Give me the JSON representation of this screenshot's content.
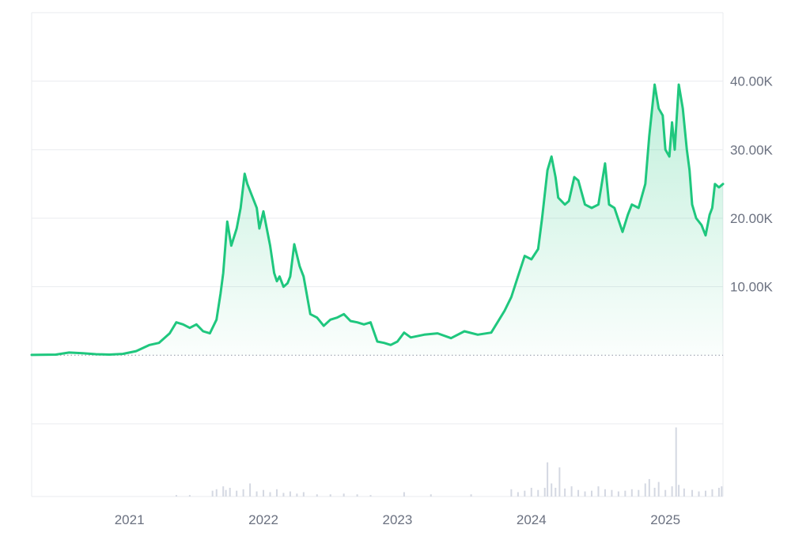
{
  "chart_data": {
    "type": "area",
    "y_ticks": [
      {
        "value": 10000,
        "label": "10.00K"
      },
      {
        "value": 20000,
        "label": "20.00K"
      },
      {
        "value": 30000,
        "label": "30.00K"
      },
      {
        "value": 40000,
        "label": "40.00K"
      }
    ],
    "x_ticks": [
      {
        "value": 2021,
        "label": "2021"
      },
      {
        "value": 2022,
        "label": "2022"
      },
      {
        "value": 2023,
        "label": "2023"
      },
      {
        "value": 2024,
        "label": "2024"
      },
      {
        "value": 2025,
        "label": "2025"
      }
    ],
    "xlim": [
      2020.27,
      2025.43
    ],
    "ylim": [
      -10000,
      50000
    ],
    "baseline_value": 0,
    "grid": true,
    "legend": "none",
    "colors": {
      "line": "#1fc77e",
      "area_top": "#1fc77e",
      "grid": "#e9ebef",
      "volume": "#d4d8e2",
      "baseline": "#9aa0ad"
    },
    "series": [
      {
        "points": [
          [
            2020.27,
            50
          ],
          [
            2020.45,
            100
          ],
          [
            2020.55,
            400
          ],
          [
            2020.65,
            300
          ],
          [
            2020.75,
            150
          ],
          [
            2020.85,
            100
          ],
          [
            2020.95,
            200
          ],
          [
            2021.05,
            600
          ],
          [
            2021.15,
            1500
          ],
          [
            2021.22,
            1800
          ],
          [
            2021.3,
            3200
          ],
          [
            2021.35,
            4800
          ],
          [
            2021.4,
            4500
          ],
          [
            2021.45,
            4000
          ],
          [
            2021.5,
            4500
          ],
          [
            2021.55,
            3500
          ],
          [
            2021.6,
            3200
          ],
          [
            2021.65,
            5200
          ],
          [
            2021.68,
            9000
          ],
          [
            2021.7,
            12000
          ],
          [
            2021.73,
            19500
          ],
          [
            2021.76,
            16000
          ],
          [
            2021.8,
            18500
          ],
          [
            2021.83,
            21500
          ],
          [
            2021.86,
            26500
          ],
          [
            2021.88,
            25000
          ],
          [
            2021.92,
            23000
          ],
          [
            2021.95,
            21500
          ],
          [
            2021.97,
            18500
          ],
          [
            2022.0,
            21000
          ],
          [
            2022.02,
            19000
          ],
          [
            2022.05,
            16000
          ],
          [
            2022.08,
            12000
          ],
          [
            2022.1,
            10800
          ],
          [
            2022.12,
            11500
          ],
          [
            2022.15,
            10000
          ],
          [
            2022.18,
            10500
          ],
          [
            2022.2,
            11500
          ],
          [
            2022.23,
            16200
          ],
          [
            2022.27,
            13000
          ],
          [
            2022.3,
            11500
          ],
          [
            2022.35,
            6000
          ],
          [
            2022.4,
            5500
          ],
          [
            2022.45,
            4300
          ],
          [
            2022.5,
            5200
          ],
          [
            2022.55,
            5500
          ],
          [
            2022.6,
            6000
          ],
          [
            2022.65,
            5000
          ],
          [
            2022.7,
            4800
          ],
          [
            2022.75,
            4500
          ],
          [
            2022.8,
            4800
          ],
          [
            2022.85,
            2000
          ],
          [
            2022.9,
            1800
          ],
          [
            2022.95,
            1500
          ],
          [
            2023.0,
            2000
          ],
          [
            2023.05,
            3300
          ],
          [
            2023.1,
            2600
          ],
          [
            2023.2,
            3000
          ],
          [
            2023.3,
            3200
          ],
          [
            2023.4,
            2500
          ],
          [
            2023.5,
            3500
          ],
          [
            2023.6,
            3000
          ],
          [
            2023.7,
            3300
          ],
          [
            2023.8,
            6500
          ],
          [
            2023.85,
            8500
          ],
          [
            2023.9,
            11500
          ],
          [
            2023.95,
            14500
          ],
          [
            2024.0,
            14000
          ],
          [
            2024.05,
            15500
          ],
          [
            2024.08,
            20000
          ],
          [
            2024.12,
            27000
          ],
          [
            2024.15,
            29000
          ],
          [
            2024.18,
            26000
          ],
          [
            2024.2,
            23000
          ],
          [
            2024.25,
            22000
          ],
          [
            2024.28,
            22500
          ],
          [
            2024.32,
            26000
          ],
          [
            2024.35,
            25500
          ],
          [
            2024.4,
            22000
          ],
          [
            2024.45,
            21500
          ],
          [
            2024.5,
            22000
          ],
          [
            2024.55,
            28000
          ],
          [
            2024.58,
            22000
          ],
          [
            2024.62,
            21500
          ],
          [
            2024.68,
            18000
          ],
          [
            2024.72,
            20500
          ],
          [
            2024.75,
            22000
          ],
          [
            2024.8,
            21500
          ],
          [
            2024.85,
            25000
          ],
          [
            2024.88,
            32000
          ],
          [
            2024.92,
            39500
          ],
          [
            2024.95,
            36000
          ],
          [
            2024.98,
            35000
          ],
          [
            2025.0,
            30000
          ],
          [
            2025.03,
            29000
          ],
          [
            2025.05,
            34000
          ],
          [
            2025.07,
            30000
          ],
          [
            2025.1,
            39500
          ],
          [
            2025.13,
            36000
          ],
          [
            2025.16,
            30000
          ],
          [
            2025.18,
            27000
          ],
          [
            2025.2,
            22000
          ],
          [
            2025.23,
            20000
          ],
          [
            2025.27,
            19000
          ],
          [
            2025.3,
            17500
          ],
          [
            2025.33,
            20500
          ],
          [
            2025.35,
            21500
          ],
          [
            2025.37,
            25000
          ],
          [
            2025.4,
            24500
          ],
          [
            2025.43,
            25000
          ]
        ]
      }
    ],
    "volume_ylim": [
      0,
      100
    ],
    "volume": [
      [
        2021.35,
        2
      ],
      [
        2021.45,
        2
      ],
      [
        2021.62,
        8
      ],
      [
        2021.65,
        10
      ],
      [
        2021.7,
        14
      ],
      [
        2021.72,
        9
      ],
      [
        2021.75,
        12
      ],
      [
        2021.8,
        8
      ],
      [
        2021.85,
        10
      ],
      [
        2021.9,
        18
      ],
      [
        2021.95,
        7
      ],
      [
        2022.0,
        9
      ],
      [
        2022.05,
        6
      ],
      [
        2022.1,
        10
      ],
      [
        2022.15,
        5
      ],
      [
        2022.2,
        7
      ],
      [
        2022.25,
        4
      ],
      [
        2022.3,
        6
      ],
      [
        2022.4,
        3
      ],
      [
        2022.5,
        3
      ],
      [
        2022.6,
        4
      ],
      [
        2022.7,
        3
      ],
      [
        2022.8,
        2
      ],
      [
        2023.05,
        6
      ],
      [
        2023.25,
        3
      ],
      [
        2023.55,
        3
      ],
      [
        2023.85,
        10
      ],
      [
        2023.9,
        6
      ],
      [
        2023.95,
        8
      ],
      [
        2024.0,
        12
      ],
      [
        2024.05,
        9
      ],
      [
        2024.1,
        12
      ],
      [
        2024.12,
        47
      ],
      [
        2024.15,
        18
      ],
      [
        2024.18,
        12
      ],
      [
        2024.21,
        40
      ],
      [
        2024.25,
        11
      ],
      [
        2024.3,
        14
      ],
      [
        2024.35,
        9
      ],
      [
        2024.4,
        7
      ],
      [
        2024.45,
        8
      ],
      [
        2024.5,
        14
      ],
      [
        2024.55,
        10
      ],
      [
        2024.6,
        9
      ],
      [
        2024.65,
        7
      ],
      [
        2024.7,
        8
      ],
      [
        2024.75,
        10
      ],
      [
        2024.8,
        9
      ],
      [
        2024.85,
        18
      ],
      [
        2024.88,
        24
      ],
      [
        2024.92,
        12
      ],
      [
        2024.95,
        20
      ],
      [
        2025.0,
        9
      ],
      [
        2025.05,
        14
      ],
      [
        2025.08,
        95
      ],
      [
        2025.1,
        16
      ],
      [
        2025.14,
        11
      ],
      [
        2025.2,
        9
      ],
      [
        2025.25,
        7
      ],
      [
        2025.3,
        8
      ],
      [
        2025.35,
        10
      ],
      [
        2025.4,
        12
      ],
      [
        2025.42,
        14
      ]
    ]
  }
}
